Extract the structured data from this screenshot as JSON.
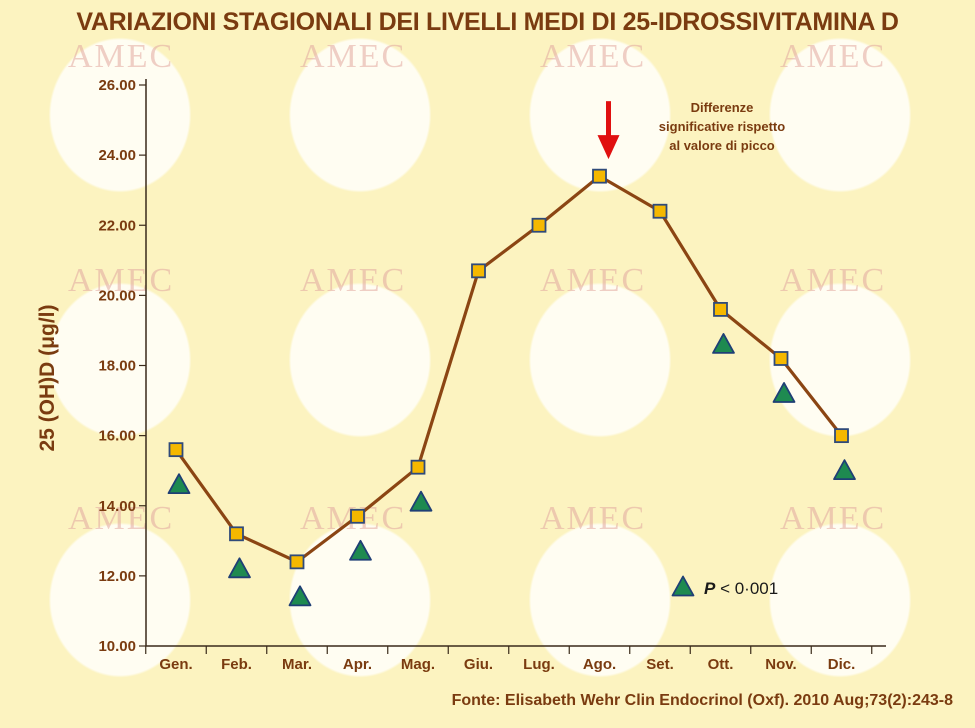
{
  "title": "VARIAZIONI STAGIONALI DEI LIVELLI MEDI DI 25-IDROSSIVITAMINA D",
  "source": "Fonte: Elisabeth Wehr Clin Endocrinol (Oxf). 2010 Aug;73(2):243-8",
  "watermark_text": "AMEC",
  "colors": {
    "line": "#8b4513",
    "square_fill": "#f5b800",
    "square_stroke": "#2f4a7a",
    "triangle_fill": "#1e8a50",
    "triangle_stroke": "#1f3f75",
    "arrow": "#e01010",
    "text": "#7a3b10"
  },
  "chart_data": {
    "type": "line",
    "title": "VARIAZIONI STAGIONALI DEI LIVELLI MEDI DI 25-IDROSSIVITAMINA D",
    "ylabel": "25 (OH)D (μg/l)",
    "xlabel": "",
    "ylim": [
      10,
      26
    ],
    "yticks": [
      "10.00",
      "12.00",
      "14.00",
      "16.00",
      "18.00",
      "20.00",
      "22.00",
      "24.00",
      "26.00"
    ],
    "ytick_values": [
      10,
      12,
      14,
      16,
      18,
      20,
      22,
      24,
      26
    ],
    "categories": [
      "Gen.",
      "Feb.",
      "Mar.",
      "Apr.",
      "Mag.",
      "Giu.",
      "Lug.",
      "Ago.",
      "Set.",
      "Ott.",
      "Nov.",
      "Dic."
    ],
    "series": [
      {
        "marker": "square",
        "values": [
          15.6,
          13.2,
          12.4,
          13.7,
          15.1,
          20.7,
          22.0,
          23.4,
          22.4,
          19.6,
          18.2,
          16.0
        ]
      }
    ],
    "significance_markers": {
      "marker": "triangle",
      "categories": [
        "Gen.",
        "Feb.",
        "Mar.",
        "Apr.",
        "Mag.",
        "Ott.",
        "Nov.",
        "Dic."
      ]
    },
    "annotation": {
      "lines": [
        "Differenze",
        "significative rispetto",
        "al valore di picco"
      ],
      "points_to": "Ago."
    },
    "legend": {
      "p_symbol": "P",
      "p_rest": " < 0·001",
      "placement": "bottom-right"
    },
    "grid": false
  }
}
